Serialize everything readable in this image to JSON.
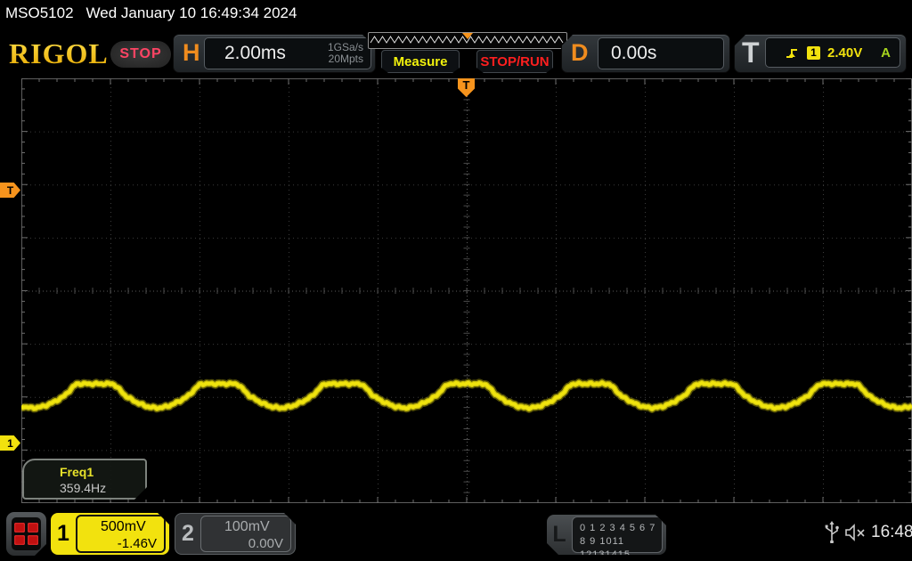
{
  "status_bar": {
    "model": "MSO5102",
    "datetime": "Wed January 10 16:49:34 2024"
  },
  "header": {
    "logo": "RIGOL",
    "run_state_badge": "STOP",
    "horizontal": {
      "label": "H",
      "timebase": "2.00ms",
      "sample_rate": "1GSa/s",
      "memory_depth": "20Mpts"
    },
    "measure_button": "Measure",
    "stoprun_button": "STOP/RUN",
    "delay": {
      "label": "D",
      "value": "0.00s"
    },
    "trigger": {
      "label": "T",
      "source_channel": "1",
      "level": "2.40V",
      "sweep_mode": "A"
    }
  },
  "graticule": {
    "trigger_position_marker": "T",
    "trigger_level_marker": "T",
    "channel1_marker": "1",
    "measurement": {
      "label": "Freq1",
      "value": "359.4Hz"
    }
  },
  "channels": [
    {
      "id": "1",
      "scale": "500mV",
      "offset": "-1.46V",
      "active": true,
      "color": "#f2e20e"
    },
    {
      "id": "2",
      "scale": "100mV",
      "offset": "0.00V",
      "active": false,
      "color": "#9ad"
    }
  ],
  "logic_analyzer": {
    "label": "L",
    "row1": "0 1 2 3  4 5 6 7",
    "row2": "8 9 1011 12131415"
  },
  "clock": "16:48",
  "waveform": {
    "channel": "1",
    "frequency_hz": 359.4,
    "timebase_ms_per_div": 2.0,
    "color": "#f0e40e",
    "shape": "sine-flattened-top"
  },
  "colors": {
    "accent_orange": "#f08c1e",
    "channel1_yellow": "#f2e20e",
    "stop_red": "#ff1f1f",
    "trigger_auto_green": "#a6d41e",
    "logo_gold": "#f7c800"
  }
}
